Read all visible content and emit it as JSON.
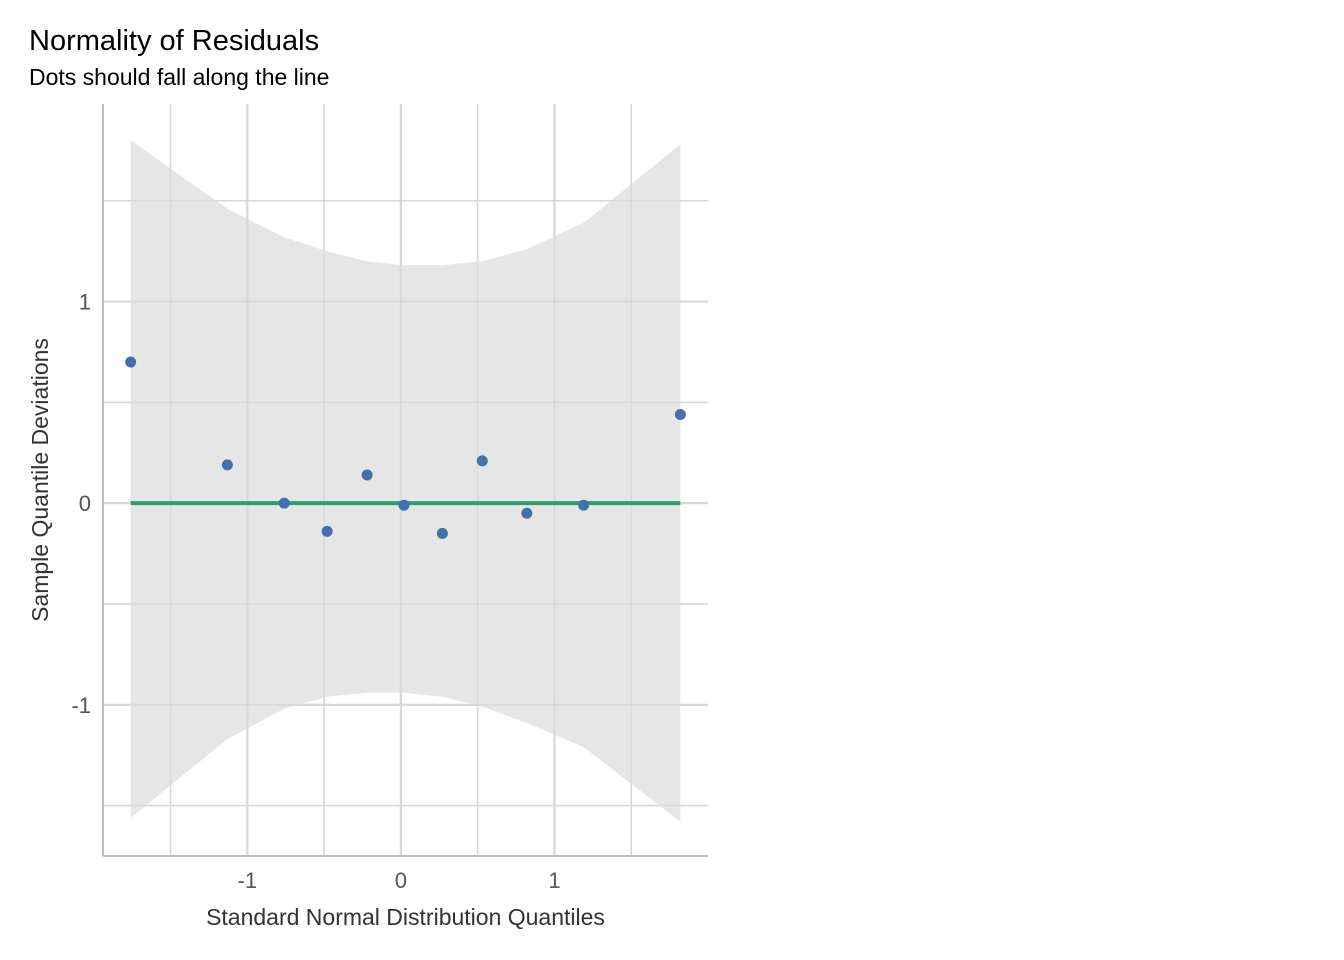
{
  "chart_data": {
    "type": "scatter",
    "title": "Normality of Residuals",
    "subtitle": "Dots should fall along the line",
    "xlabel": "Standard Normal Distribution Quantiles",
    "ylabel": "Sample Quantile Deviations",
    "xlim": [
      -1.94,
      2.0
    ],
    "ylim": [
      -1.75,
      1.98
    ],
    "x_ticks": [
      -1,
      0,
      1
    ],
    "x_tick_labels": [
      "-1",
      "0",
      "1"
    ],
    "y_ticks": [
      -1,
      0,
      1
    ],
    "y_tick_labels": [
      "-1",
      "0",
      "1"
    ],
    "x_minor_gridlines": [
      -1.5,
      -0.5,
      0.5,
      1.5
    ],
    "y_minor_gridlines": [
      -1.5,
      -0.5,
      0.5,
      1.5
    ],
    "grid": true,
    "legend": "none",
    "points": {
      "x": [
        -1.76,
        -1.13,
        -0.76,
        -0.48,
        -0.22,
        0.02,
        0.27,
        0.53,
        0.82,
        1.19,
        1.82
      ],
      "y": [
        0.7,
        0.19,
        0.0,
        -0.14,
        0.14,
        -0.01,
        -0.15,
        0.21,
        -0.05,
        -0.01,
        0.44
      ]
    },
    "reference_line": {
      "x": [
        -1.76,
        1.82
      ],
      "y": [
        0,
        0
      ]
    },
    "confidence_band": {
      "x": [
        -1.76,
        -1.13,
        -0.76,
        -0.48,
        -0.22,
        0.02,
        0.27,
        0.53,
        0.82,
        1.19,
        1.82
      ],
      "upper": [
        1.8,
        1.46,
        1.32,
        1.25,
        1.2,
        1.18,
        1.18,
        1.2,
        1.26,
        1.39,
        1.78
      ],
      "lower": [
        -1.56,
        -1.17,
        -1.02,
        -0.96,
        -0.94,
        -0.94,
        -0.96,
        -1.01,
        -1.09,
        -1.21,
        -1.58
      ]
    },
    "colors": {
      "points": "#4271ae",
      "line": "#2e9e6a",
      "band": "#e6e6e6",
      "grid": "#e3e3e3",
      "axis": "#bdbdbd"
    }
  }
}
